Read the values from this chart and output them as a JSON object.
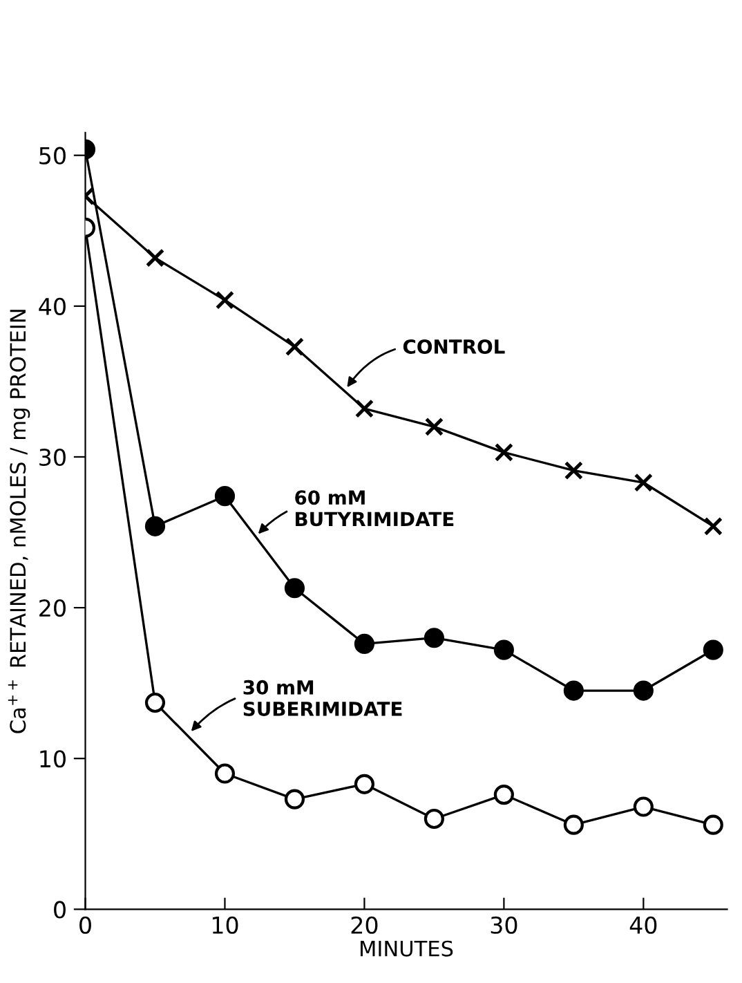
{
  "chart_data": {
    "type": "line",
    "xlabel": "MINUTES",
    "ylabel": "Ca$^{++}$ RETAINED, nMOLES / mg PROTEIN",
    "x": [
      0,
      5,
      10,
      15,
      20,
      25,
      30,
      35,
      40,
      45
    ],
    "series": [
      {
        "color": "#000000",
        "marker": "cross",
        "values": [
          47.3,
          43.2,
          40.4,
          37.3,
          33.2,
          32.0,
          30.3,
          29.1,
          28.3,
          25.4
        ]
      },
      {
        "color": "#000000",
        "marker": "circle",
        "values": [
          50.4,
          25.4,
          27.4,
          21.3,
          17.6,
          18.0,
          17.2,
          14.5,
          14.5,
          17.2
        ]
      },
      {
        "color": "#000000",
        "marker": "circle",
        "colors": [
          "#ffffff",
          "#ffffff",
          "#ffffff",
          "#ffffff",
          "#ffffff",
          "#ffffff",
          "#ffffff",
          "#ffffff",
          "#ffffff",
          "#ffffff"
        ],
        "values": [
          45.2,
          13.7,
          9.0,
          7.3,
          8.3,
          6.0,
          7.6,
          5.6,
          6.8,
          5.6
        ]
      }
    ],
    "annotations": [
      {
        "text": "CONTROL",
        "x": 18.6,
        "y": 34.4
      },
      {
        "text": "60 mM\nBUTYRIMIDATE",
        "x": 12.2,
        "y": 24.7
      },
      {
        "text": "30 mM\nSUBERIMIDATE",
        "x": 7.4,
        "y": 11.6
      }
    ],
    "xlim": [
      0,
      46
    ],
    "ylim": [
      0,
      51.5
    ],
    "xticks": [
      0,
      10,
      20,
      30,
      40
    ],
    "yticks": [
      0,
      10,
      20,
      30,
      40,
      50
    ],
    "grid": false,
    "legend": false,
    "line_style": "solid"
  }
}
